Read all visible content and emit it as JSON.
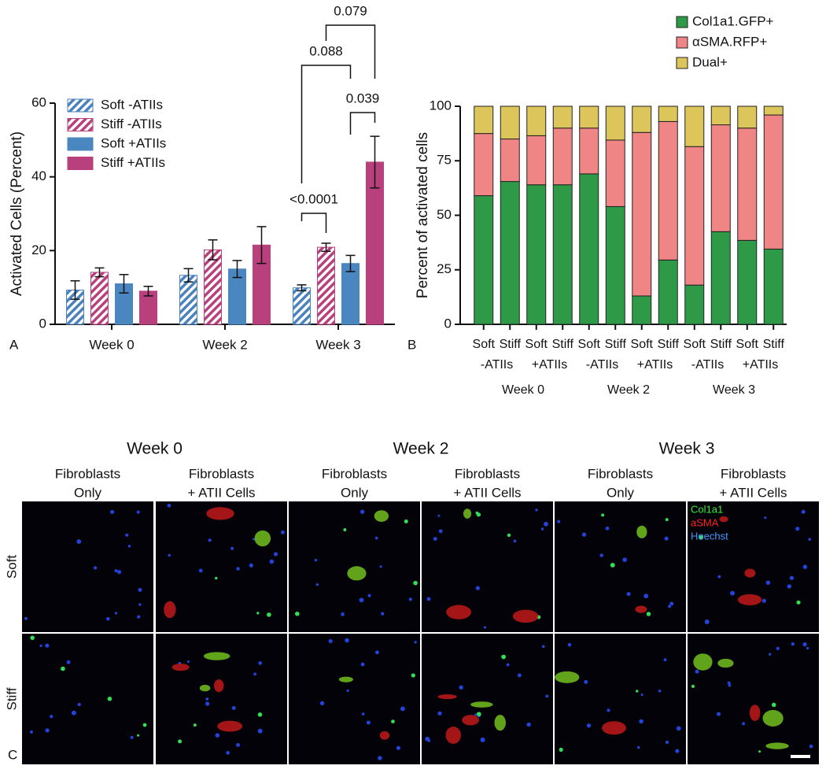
{
  "chart_data": [
    {
      "type": "bar",
      "panel": "A",
      "ylabel": "Activated Cells (Percent)",
      "categories": [
        "Week 0",
        "Week 2",
        "Week 3"
      ],
      "series": [
        {
          "name": "Soft -ATIIs",
          "color": "#4a82bd",
          "hatch": true,
          "values": [
            9.3,
            13.3,
            9.9
          ],
          "errors": [
            2.5,
            1.8,
            0.8
          ]
        },
        {
          "name": "Stiff -ATIIs",
          "color": "#b8407c",
          "hatch": true,
          "values": [
            14.1,
            20.2,
            20.9
          ],
          "errors": [
            1.2,
            2.7,
            1.1
          ]
        },
        {
          "name": "Soft +ATIIs",
          "color": "#4a86c0",
          "hatch": false,
          "values": [
            11,
            15,
            16.5
          ],
          "errors": [
            2.5,
            2.3,
            2.2
          ]
        },
        {
          "name": "Stiff +ATIIs",
          "color": "#b8407c",
          "hatch": false,
          "values": [
            9,
            21.5,
            44
          ],
          "errors": [
            1.3,
            5,
            7
          ]
        }
      ],
      "ylim": [
        0,
        60
      ],
      "yticks": [
        0,
        20,
        40,
        60
      ],
      "annotations": [
        "<0.0001",
        "0.039",
        "0.088",
        "0.079"
      ]
    },
    {
      "type": "stacked_bar",
      "panel": "B",
      "ylabel": "Percent of activated cells",
      "categories": [
        "Soft",
        "Stiff",
        "Soft",
        "Stiff",
        "Soft",
        "Stiff",
        "Soft",
        "Stiff",
        "Soft",
        "Stiff",
        "Soft",
        "Stiff"
      ],
      "subgroups": [
        "-ATIIs",
        "+ATIIs",
        "-ATIIs",
        "+ATIIs",
        "-ATIIs",
        "+ATIIs"
      ],
      "groups": [
        "Week 0",
        "Week 2",
        "Week 3"
      ],
      "series": [
        {
          "name": "Col1a1.GFP+",
          "color": "#2e9a48",
          "values": [
            59,
            65.5,
            64,
            64,
            69,
            54,
            13,
            29.5,
            18,
            42.5,
            38.5,
            34.5
          ]
        },
        {
          "name": "αSMA.RFP+",
          "color": "#f08585",
          "values": [
            28.5,
            19.5,
            22.5,
            26,
            21,
            30.5,
            75,
            63.5,
            63.5,
            49,
            51.5,
            61.5
          ]
        },
        {
          "name": "Dual+",
          "color": "#dcc65c",
          "values": [
            12.5,
            15,
            13.5,
            10,
            10,
            15.5,
            12,
            7,
            18.5,
            8.5,
            10,
            4
          ]
        }
      ],
      "ylim": [
        0,
        100
      ],
      "yticks": [
        0,
        25,
        50,
        75,
        100
      ]
    }
  ],
  "image_panel": {
    "panel": "C",
    "weeks": [
      "Week 0",
      "Week 2",
      "Week 3"
    ],
    "columns": [
      [
        "Fibroblasts",
        "Only"
      ],
      [
        "Fibroblasts",
        "+ ATII Cells"
      ],
      [
        "Fibroblasts",
        "Only"
      ],
      [
        "Fibroblasts",
        "+ ATII Cells"
      ],
      [
        "Fibroblasts",
        "Only"
      ],
      [
        "Fibroblasts",
        "+ ATII Cells"
      ]
    ],
    "rows": [
      "Soft",
      "Stiff"
    ],
    "legend": [
      {
        "name": "Col1a1",
        "color": "#33ee33"
      },
      {
        "name": "aSMA",
        "color": "#ff2222"
      },
      {
        "name": "Hoechst",
        "color": "#4499ff"
      }
    ]
  }
}
